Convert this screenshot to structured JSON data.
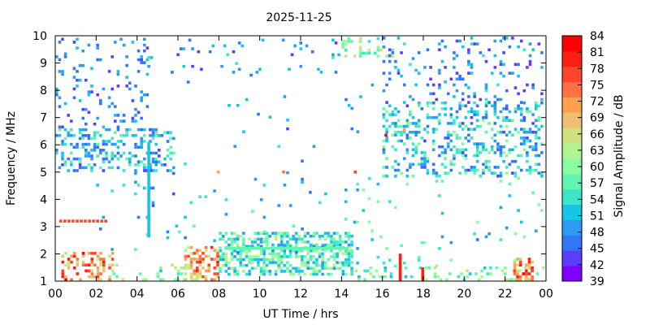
{
  "chart_data": {
    "type": "heatmap",
    "title": "2025-11-25",
    "xlabel": "UT Time / hrs",
    "ylabel": "Frequency / MHz",
    "colorbar_label": "Signal Amplitude / dB",
    "xlim": [
      0,
      24
    ],
    "ylim": [
      1,
      10
    ],
    "x_ticks": [
      "00",
      "02",
      "04",
      "06",
      "08",
      "10",
      "12",
      "14",
      "16",
      "18",
      "20",
      "22",
      "00"
    ],
    "y_ticks": [
      "1",
      "2",
      "3",
      "4",
      "5",
      "6",
      "7",
      "8",
      "9",
      "10"
    ],
    "colorbar": {
      "levels": [
        39,
        42,
        45,
        48,
        51,
        54,
        57,
        60,
        63,
        66,
        69,
        72,
        75,
        78,
        81,
        84
      ],
      "colors": [
        "#8000ff",
        "#5a3dff",
        "#3376f5",
        "#2a9df0",
        "#16c6e6",
        "#3ee6c8",
        "#62f7b0",
        "#8afba0",
        "#b0f590",
        "#cfe27e",
        "#ecc070",
        "#ffa050",
        "#ff7043",
        "#ff4530",
        "#ff1e10",
        "#ff0000"
      ]
    },
    "grid": false,
    "regions": [
      {
        "x": [
          0.0,
          5.8
        ],
        "y": [
          5.0,
          6.6
        ],
        "amp": [
          44,
          58
        ],
        "density": 0.33
      },
      {
        "x": [
          0.0,
          4.5
        ],
        "y": [
          6.6,
          10.0
        ],
        "amp": [
          42,
          52
        ],
        "density": 0.12
      },
      {
        "x": [
          4.5,
          14.0
        ],
        "y": [
          8.5,
          10.0
        ],
        "amp": [
          42,
          54
        ],
        "density": 0.06
      },
      {
        "x": [
          14.0,
          16.5
        ],
        "y": [
          9.2,
          10.0
        ],
        "amp": [
          52,
          66
        ],
        "density": 0.3
      },
      {
        "x": [
          16.0,
          24.0
        ],
        "y": [
          4.8,
          7.5
        ],
        "amp": [
          44,
          60
        ],
        "density": 0.3
      },
      {
        "x": [
          16.0,
          24.0
        ],
        "y": [
          7.5,
          10.0
        ],
        "amp": [
          42,
          54
        ],
        "density": 0.12
      },
      {
        "x": [
          8.0,
          14.5
        ],
        "y": [
          1.2,
          2.8
        ],
        "amp": [
          48,
          64
        ],
        "density": 0.58
      },
      {
        "x": [
          6.3,
          8.0
        ],
        "y": [
          1.0,
          2.2
        ],
        "amp": [
          62,
          80
        ],
        "density": 0.5
      },
      {
        "x": [
          0.3,
          2.8
        ],
        "y": [
          1.0,
          2.0
        ],
        "amp": [
          62,
          82
        ],
        "density": 0.42
      },
      {
        "x": [
          2.8,
          6.3
        ],
        "y": [
          1.0,
          1.6
        ],
        "amp": [
          52,
          66
        ],
        "density": 0.2
      },
      {
        "x": [
          14.5,
          24.0
        ],
        "y": [
          1.0,
          1.5
        ],
        "amp": [
          52,
          66
        ],
        "density": 0.18
      },
      {
        "x": [
          22.4,
          23.3
        ],
        "y": [
          1.0,
          1.8
        ],
        "amp": [
          66,
          82
        ],
        "density": 0.5
      },
      {
        "x": [
          2.0,
          14.0
        ],
        "y": [
          2.0,
          5.0
        ],
        "amp": [
          44,
          58
        ],
        "density": 0.03
      },
      {
        "x": [
          14.0,
          24.0
        ],
        "y": [
          1.5,
          4.8
        ],
        "amp": [
          46,
          62
        ],
        "density": 0.03
      },
      {
        "x": [
          6.0,
          16.0
        ],
        "y": [
          4.6,
          8.5
        ],
        "amp": [
          44,
          54
        ],
        "density": 0.008
      }
    ],
    "lines": [
      {
        "x": [
          0.2,
          2.4
        ],
        "freq": 3.15,
        "amp": 78,
        "step": 0.2
      },
      {
        "x": [
          8.3,
          14.2
        ],
        "freq": 2.15,
        "amp": 58,
        "step": 0.12
      },
      {
        "x": [
          4.3,
          4.6
        ],
        "freq": 5.0,
        "amp": 42,
        "step": 0.1
      }
    ],
    "columns": [
      {
        "time": 4.5,
        "freq": [
          2.6,
          6.0
        ],
        "amp": 52,
        "step": 0.1
      },
      {
        "time": 16.8,
        "freq": [
          1.0,
          2.0
        ],
        "amp": 80,
        "step": 0.1
      },
      {
        "time": 17.9,
        "freq": [
          1.0,
          1.5
        ],
        "amp": 80,
        "step": 0.1
      }
    ],
    "points": [
      {
        "time": 16.1,
        "freq": 6.3,
        "amp": 84
      },
      {
        "time": 11.1,
        "freq": 4.95,
        "amp": 75
      },
      {
        "time": 14.6,
        "freq": 4.95,
        "amp": 78
      },
      {
        "time": 7.9,
        "freq": 4.95,
        "amp": 70
      },
      {
        "time": 12.4,
        "freq": 4.2,
        "amp": 45
      },
      {
        "time": 17.0,
        "freq": 6.5,
        "amp": 72
      }
    ]
  }
}
